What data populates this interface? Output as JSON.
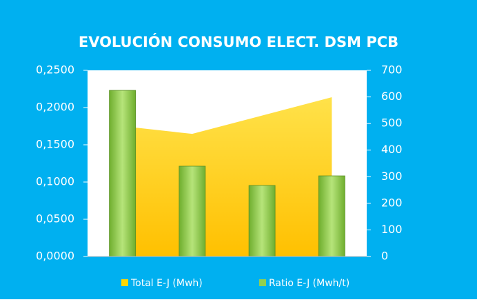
{
  "chart_data": {
    "type": "bar-area",
    "title": "EVOLUCIÓN CONSUMO ELECT. DSM PCB",
    "categories": [
      null,
      null,
      null,
      null
    ],
    "series": [
      {
        "name": "Total E-J (Mwh)",
        "type": "area",
        "color": "#ffd700",
        "axis": "y2",
        "values": [
          490,
          461,
          530,
          599
        ]
      },
      {
        "name": "Ratio E-J (Mwh/t)",
        "type": "bar",
        "color": "#92d050",
        "axis": "y",
        "values": [
          0.2231,
          0.1213,
          0.0954,
          0.1083
        ]
      }
    ],
    "ylim": [
      0,
      0.25
    ],
    "yticks": [
      {
        "value": 0,
        "label": "0,0000"
      },
      {
        "value": 0.05,
        "label": "0,0500"
      },
      {
        "value": 0.1,
        "label": "0,1000"
      },
      {
        "value": 0.15,
        "label": "0,1500"
      },
      {
        "value": 0.2,
        "label": "0,2000"
      },
      {
        "value": 0.25,
        "label": "0,2500"
      }
    ],
    "y2lim": [
      0,
      700
    ],
    "y2ticks": [
      0,
      100,
      200,
      300,
      400,
      500,
      600,
      700
    ],
    "legend": "bottom"
  }
}
